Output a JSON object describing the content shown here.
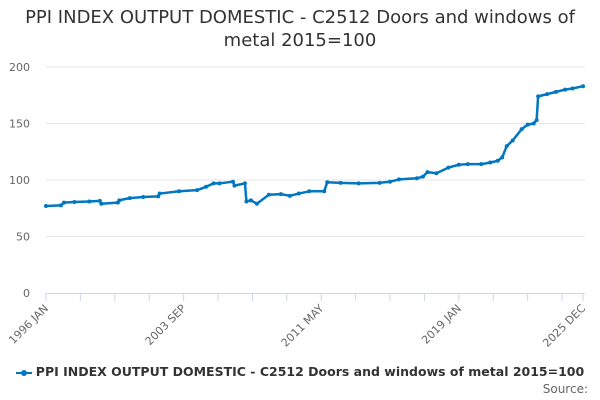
{
  "chart_data": {
    "type": "line",
    "title": "PPI INDEX OUTPUT DOMESTIC - C2512 Doors and windows of metal 2015=100",
    "xlabel": "",
    "ylabel": "",
    "ylim": [
      0,
      200
    ],
    "y_ticks": [
      "0",
      "50",
      "100",
      "150",
      "200"
    ],
    "x_range": [
      "1996-01",
      "2025-12"
    ],
    "x_tick_labels": [
      "1996 JAN",
      "2003 SEP",
      "2011 MAY",
      "2019 JAN",
      "2025 DEC"
    ],
    "grid": "horizontal",
    "legend_position": "bottom",
    "color": "#0077c0",
    "series": [
      {
        "name": "PPI INDEX OUTPUT DOMESTIC - C2512 Doors and windows of metal 2015=100",
        "points": [
          [
            "1996-01",
            77
          ],
          [
            "1996-11",
            77.5
          ],
          [
            "1997-01",
            80
          ],
          [
            "1997-08",
            80.5
          ],
          [
            "1998-06",
            81
          ],
          [
            "1999-01",
            81.5
          ],
          [
            "1999-02",
            79
          ],
          [
            "2000-01",
            80
          ],
          [
            "2000-02",
            82
          ],
          [
            "2000-09",
            84
          ],
          [
            "2001-06",
            85
          ],
          [
            "2002-04",
            85.5
          ],
          [
            "2002-05",
            88
          ],
          [
            "2003-06",
            90
          ],
          [
            "2004-06",
            91
          ],
          [
            "2004-12",
            94
          ],
          [
            "2005-05",
            97
          ],
          [
            "2005-09",
            97
          ],
          [
            "2006-06",
            98.5
          ],
          [
            "2006-07",
            95
          ],
          [
            "2007-02",
            97
          ],
          [
            "2007-03",
            81
          ],
          [
            "2007-06",
            82
          ],
          [
            "2007-10",
            79
          ],
          [
            "2008-06",
            87
          ],
          [
            "2009-02",
            87.5
          ],
          [
            "2009-08",
            86
          ],
          [
            "2010-02",
            88
          ],
          [
            "2010-09",
            90
          ],
          [
            "2011-07",
            90
          ],
          [
            "2011-09",
            98
          ],
          [
            "2012-06",
            97.5
          ],
          [
            "2013-06",
            97
          ],
          [
            "2014-08",
            97.5
          ],
          [
            "2015-03",
            98.5
          ],
          [
            "2015-09",
            100.5
          ],
          [
            "2016-09",
            101.5
          ],
          [
            "2017-01",
            103
          ],
          [
            "2017-04",
            107
          ],
          [
            "2017-10",
            106
          ],
          [
            "2018-06",
            111
          ],
          [
            "2019-01",
            113.5
          ],
          [
            "2019-07",
            114
          ],
          [
            "2020-04",
            114
          ],
          [
            "2020-10",
            115.5
          ],
          [
            "2021-03",
            117
          ],
          [
            "2021-06",
            120
          ],
          [
            "2021-09",
            130
          ],
          [
            "2022-01",
            135
          ],
          [
            "2022-07",
            145
          ],
          [
            "2022-11",
            149
          ],
          [
            "2023-03",
            150
          ],
          [
            "2023-05",
            153
          ],
          [
            "2023-06",
            174
          ],
          [
            "2023-12",
            176
          ],
          [
            "2024-06",
            178
          ],
          [
            "2024-12",
            180
          ],
          [
            "2025-05",
            181
          ],
          [
            "2025-12",
            183
          ]
        ]
      }
    ]
  },
  "source_label": "Source:"
}
